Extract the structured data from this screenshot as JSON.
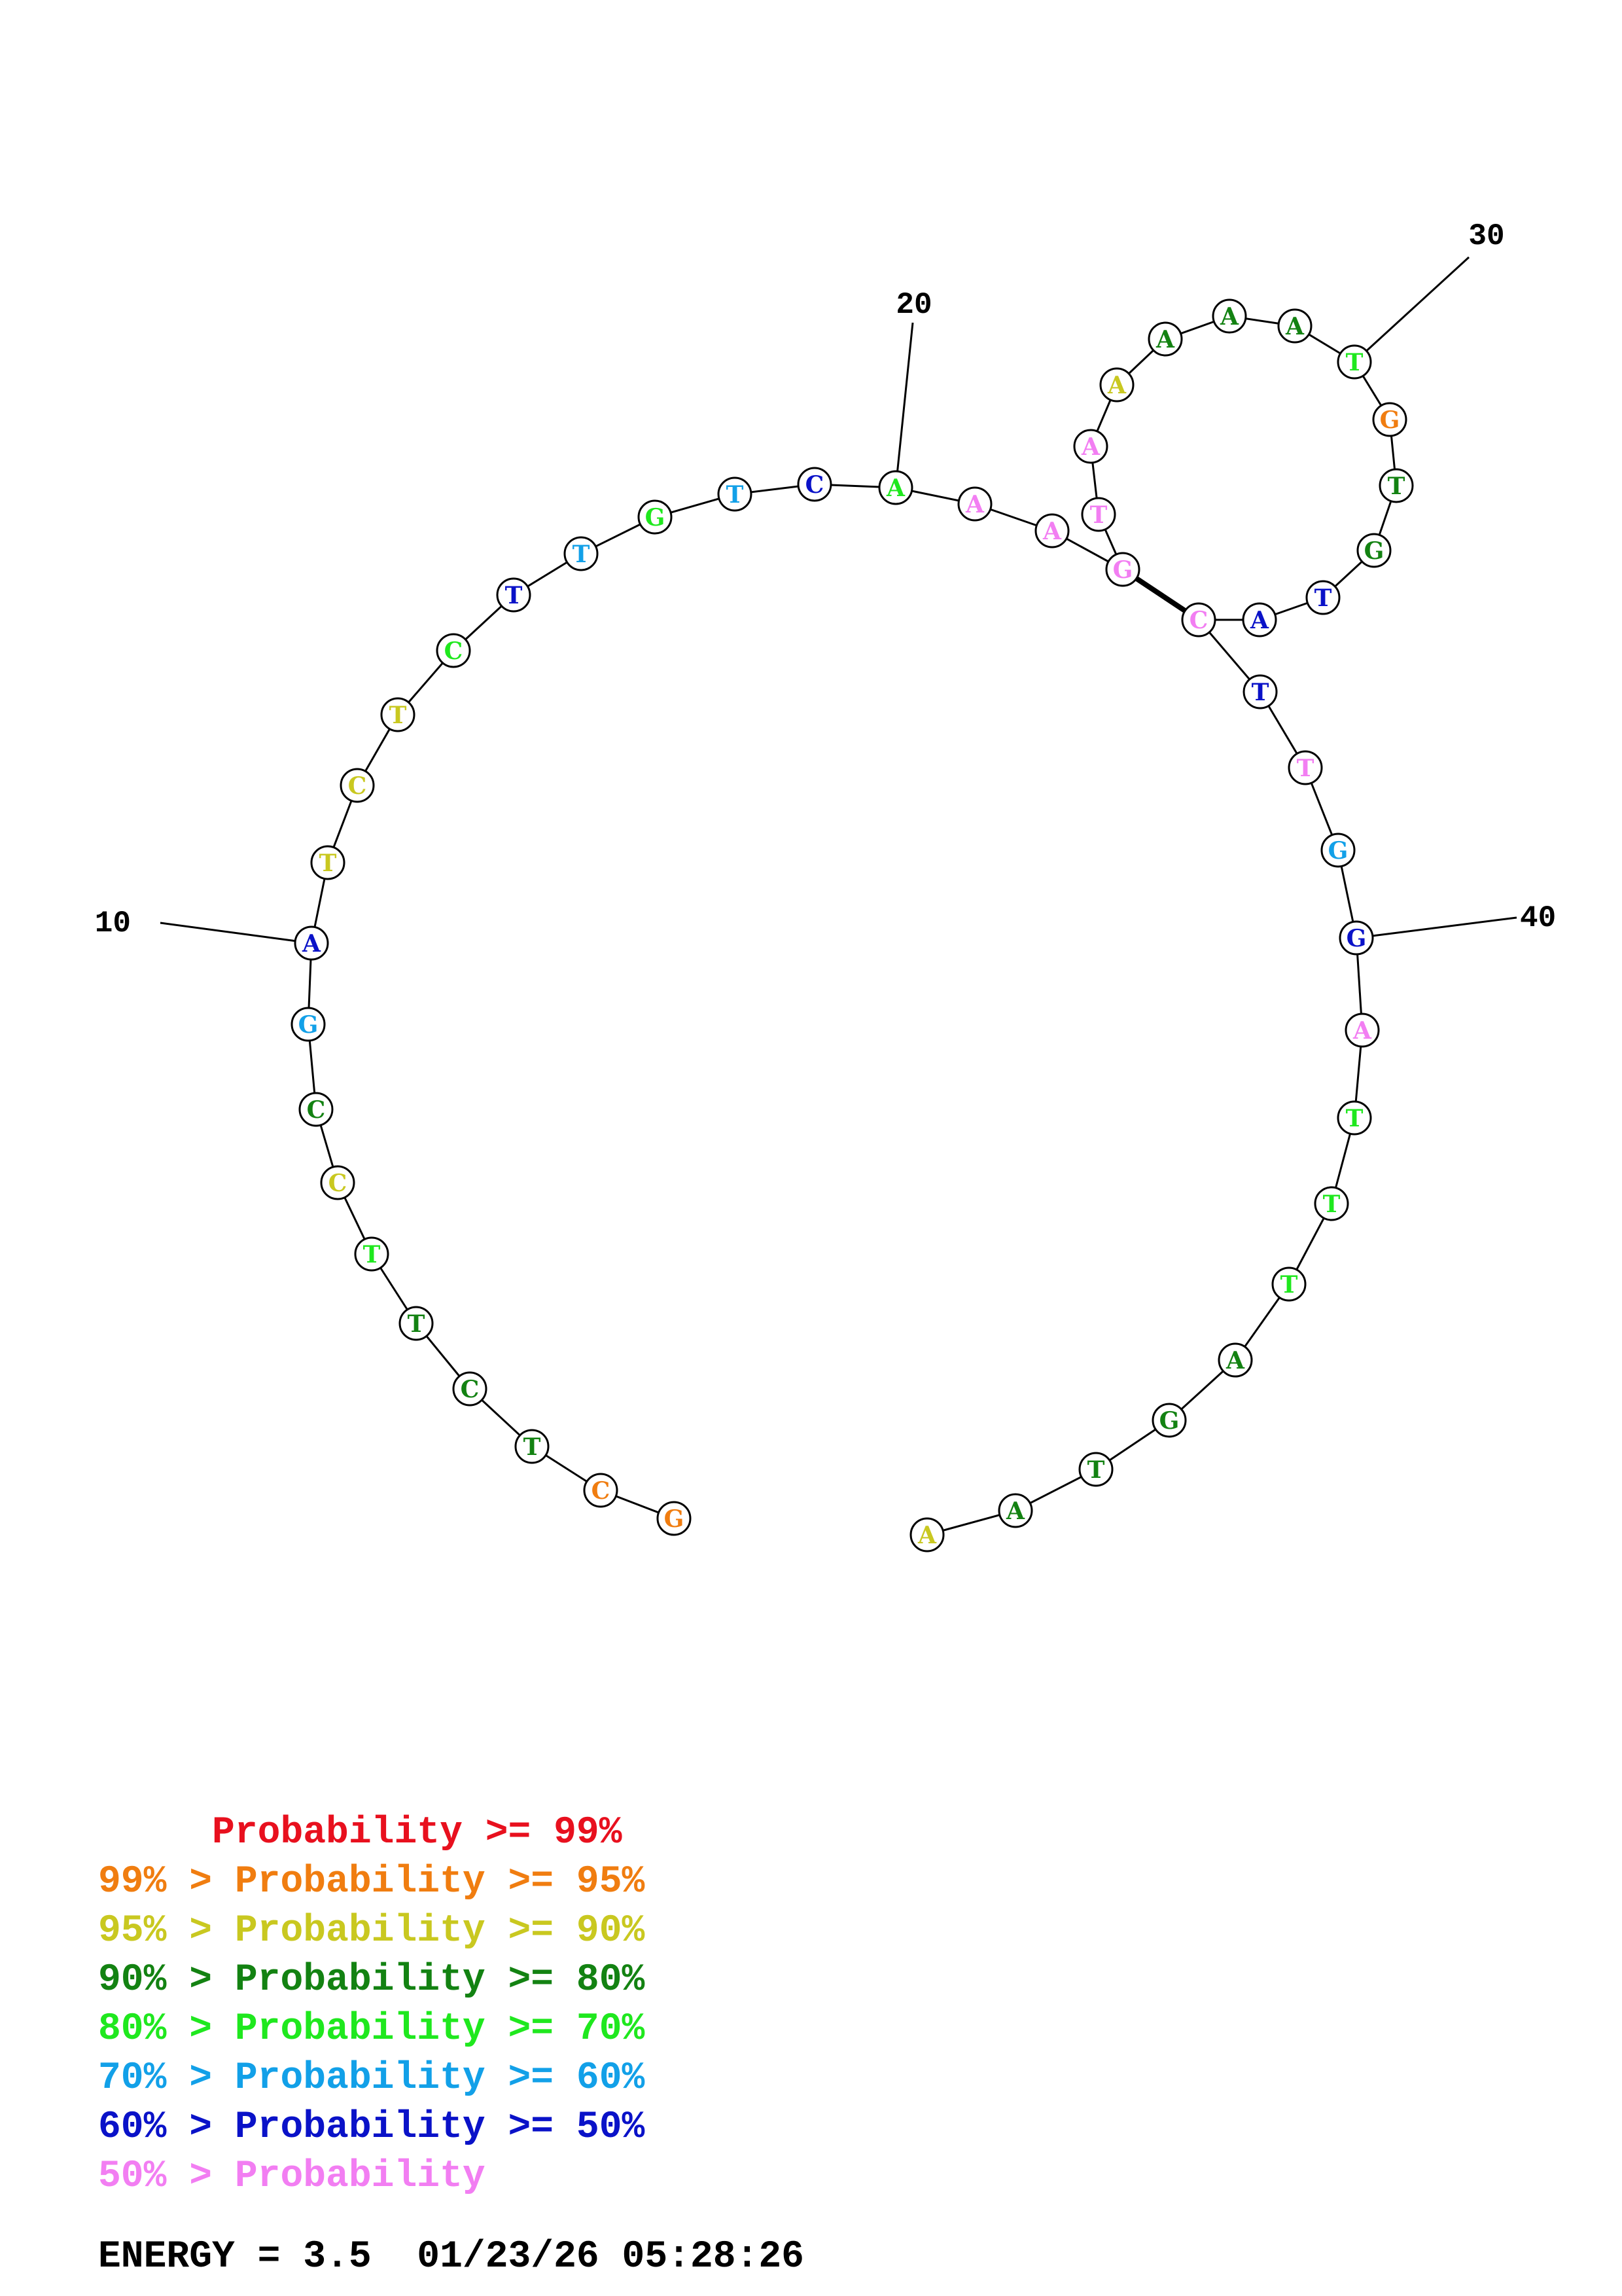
{
  "colors": {
    "p99": "#e8101e",
    "p95": "#f07d10",
    "p90": "#c9c820",
    "p80": "#138212",
    "p70": "#1fe81e",
    "p60": "#12a0e8",
    "p50": "#0a12c8",
    "plow": "#f27ef2"
  },
  "sequence": [
    {
      "base": "G",
      "color": "p95"
    },
    {
      "base": "C",
      "color": "p95"
    },
    {
      "base": "T",
      "color": "p80"
    },
    {
      "base": "C",
      "color": "p80"
    },
    {
      "base": "T",
      "color": "p80"
    },
    {
      "base": "T",
      "color": "p70"
    },
    {
      "base": "C",
      "color": "p90"
    },
    {
      "base": "C",
      "color": "p80"
    },
    {
      "base": "G",
      "color": "p60"
    },
    {
      "base": "A",
      "color": "p50"
    },
    {
      "base": "T",
      "color": "p90"
    },
    {
      "base": "C",
      "color": "p90"
    },
    {
      "base": "T",
      "color": "p90"
    },
    {
      "base": "C",
      "color": "p70"
    },
    {
      "base": "T",
      "color": "p50"
    },
    {
      "base": "T",
      "color": "p60"
    },
    {
      "base": "G",
      "color": "p70"
    },
    {
      "base": "T",
      "color": "p60"
    },
    {
      "base": "C",
      "color": "p50"
    },
    {
      "base": "A",
      "color": "p70"
    },
    {
      "base": "A",
      "color": "plow"
    },
    {
      "base": "A",
      "color": "plow"
    },
    {
      "base": "G",
      "color": "plow"
    },
    {
      "base": "T",
      "color": "plow"
    },
    {
      "base": "A",
      "color": "plow"
    },
    {
      "base": "A",
      "color": "p90"
    },
    {
      "base": "A",
      "color": "p80"
    },
    {
      "base": "A",
      "color": "p80"
    },
    {
      "base": "A",
      "color": "p80"
    },
    {
      "base": "T",
      "color": "p70"
    },
    {
      "base": "G",
      "color": "p95"
    },
    {
      "base": "T",
      "color": "p80"
    },
    {
      "base": "G",
      "color": "p80"
    },
    {
      "base": "T",
      "color": "p50"
    },
    {
      "base": "A",
      "color": "p50"
    },
    {
      "base": "C",
      "color": "plow"
    },
    {
      "base": "T",
      "color": "p50"
    },
    {
      "base": "T",
      "color": "plow"
    },
    {
      "base": "G",
      "color": "p60"
    },
    {
      "base": "G",
      "color": "p50"
    },
    {
      "base": "A",
      "color": "plow"
    },
    {
      "base": "T",
      "color": "p70"
    },
    {
      "base": "T",
      "color": "p70"
    },
    {
      "base": "T",
      "color": "p70"
    },
    {
      "base": "A",
      "color": "p80"
    },
    {
      "base": "G",
      "color": "p80"
    },
    {
      "base": "T",
      "color": "p80"
    },
    {
      "base": "A",
      "color": "p80"
    },
    {
      "base": "A",
      "color": "p90"
    }
  ],
  "pairs": [
    [
      23,
      36
    ]
  ],
  "tick_labels": [
    {
      "index": 10,
      "label": "10"
    },
    {
      "index": 20,
      "label": "20"
    },
    {
      "index": 30,
      "label": "30"
    },
    {
      "index": 40,
      "label": "40"
    }
  ],
  "legend": [
    {
      "text": "     Probability >= 99%",
      "color": "p99"
    },
    {
      "text": "99% > Probability >= 95%",
      "color": "p95"
    },
    {
      "text": "95% > Probability >= 90%",
      "color": "p90"
    },
    {
      "text": "90% > Probability >= 80%",
      "color": "p80"
    },
    {
      "text": "80% > Probability >= 70%",
      "color": "p70"
    },
    {
      "text": "70% > Probability >= 60%",
      "color": "p60"
    },
    {
      "text": "60% > Probability >= 50%",
      "color": "p50"
    },
    {
      "text": "50% > Probability",
      "color": "plow"
    }
  ],
  "energy": {
    "text": "ENERGY = 3.5  01/23/26 05:28:26"
  }
}
